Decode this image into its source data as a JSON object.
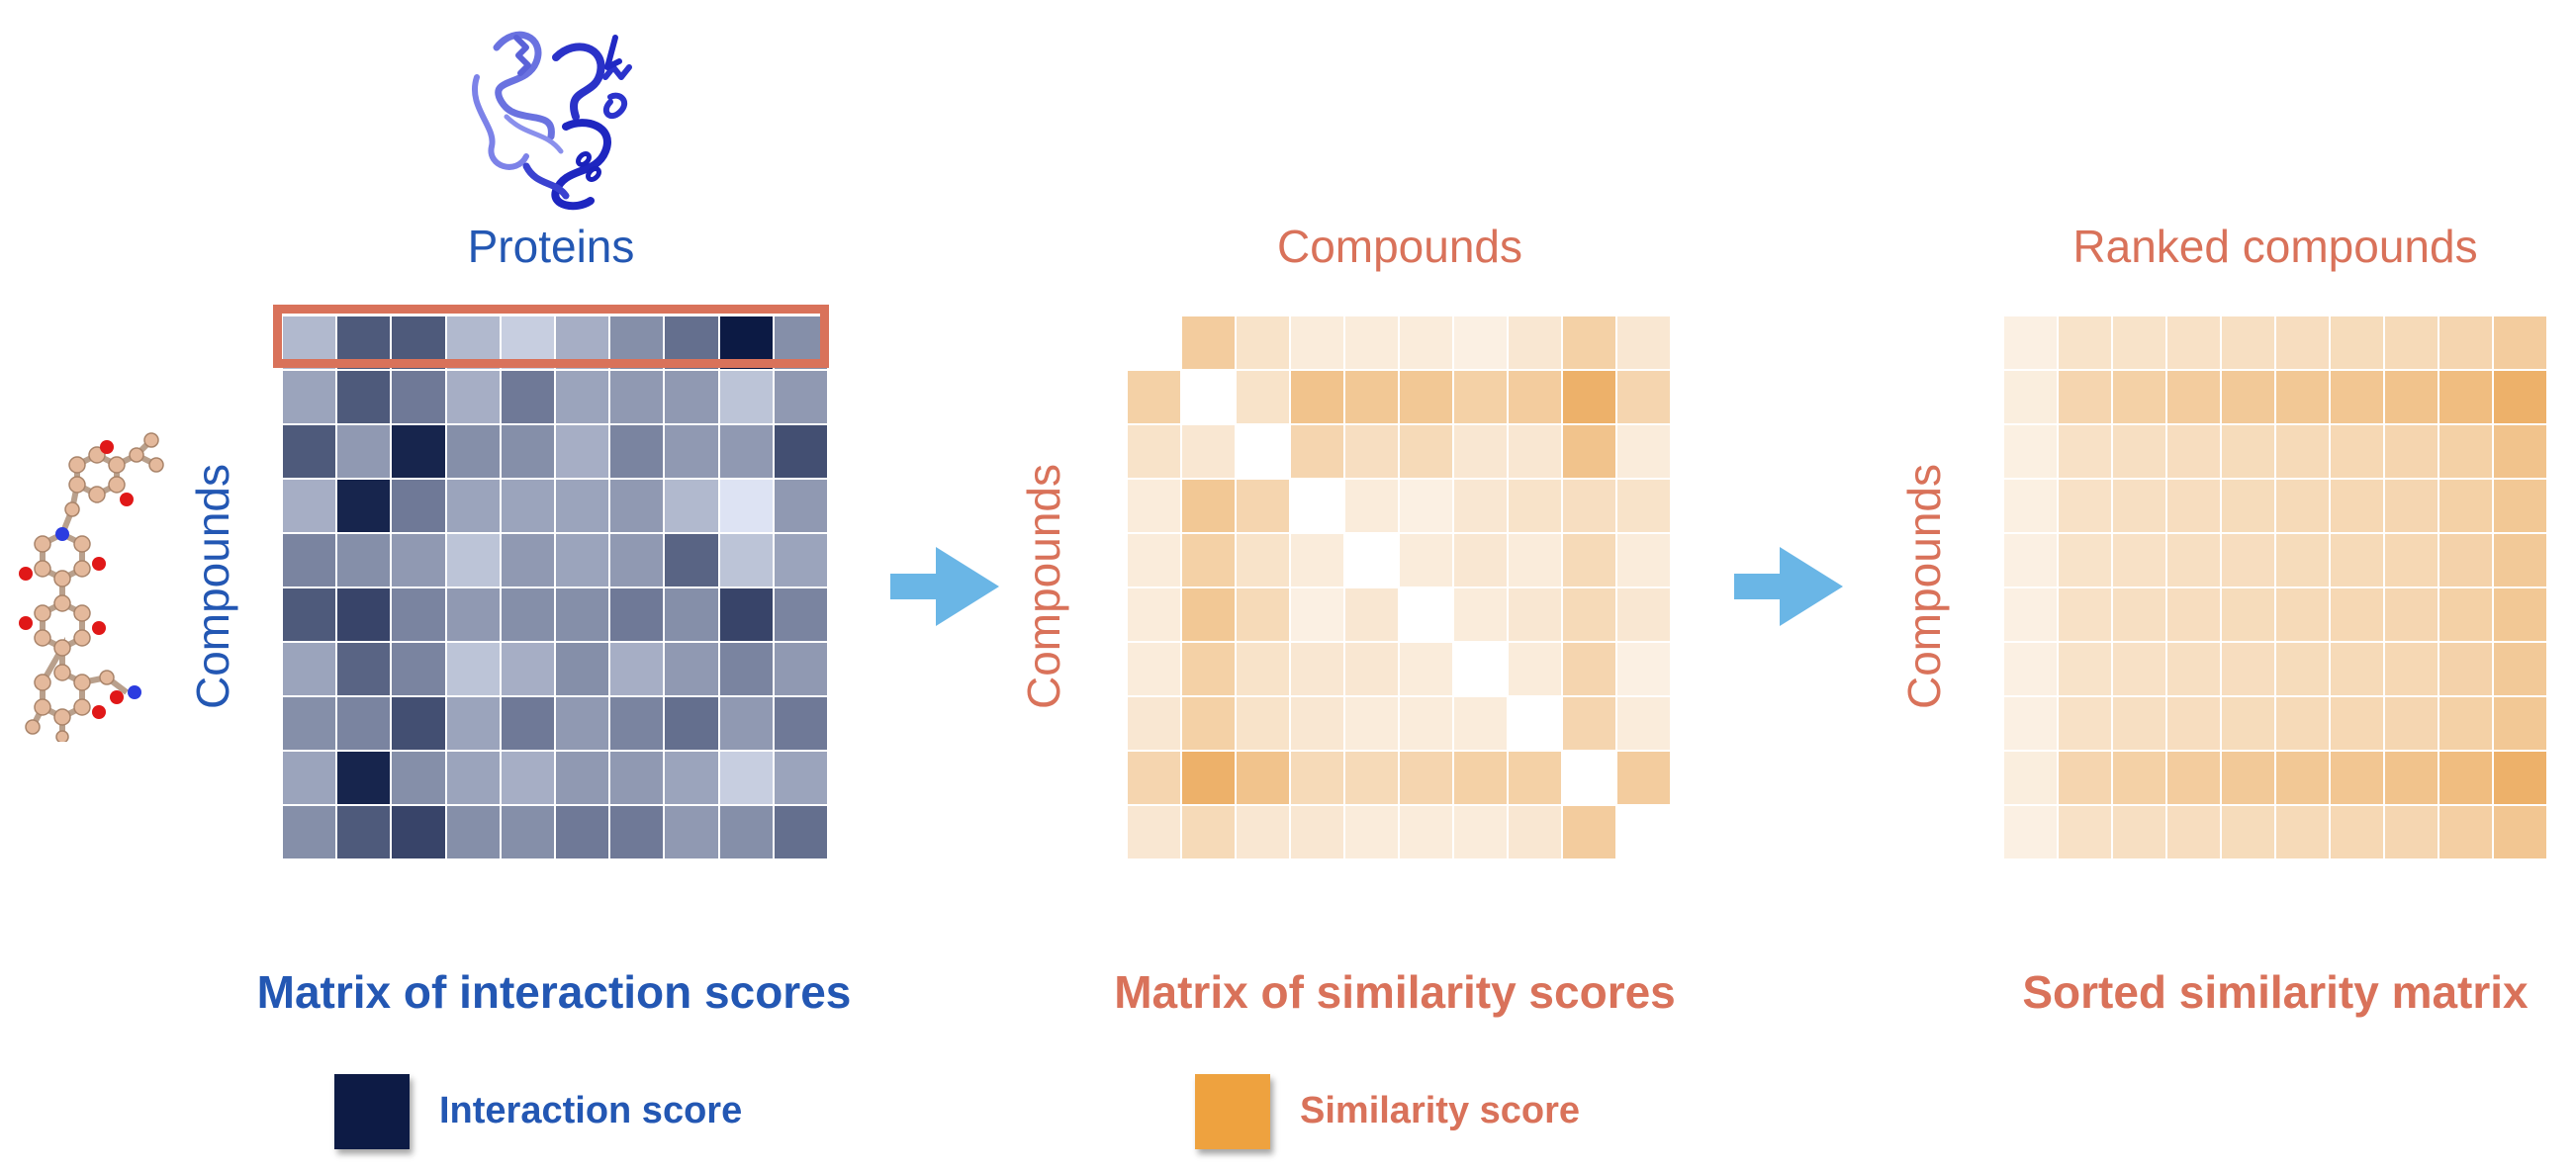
{
  "colors": {
    "blue_text": "#2357b3",
    "orange_text": "#d9725a",
    "arrow": "#6ab6e6",
    "highlight_box": "#d9725a",
    "interaction_swatch": "#0d1b45",
    "similarity_swatch": "#eea23f"
  },
  "panel1": {
    "top_label": "Proteins",
    "side_label": "Compounds",
    "caption": "Matrix of interaction scores",
    "matrix": [
      [
        0.25,
        0.7,
        0.7,
        0.25,
        0.15,
        0.3,
        0.45,
        0.6,
        1.0,
        0.45
      ],
      [
        0.35,
        0.7,
        0.55,
        0.3,
        0.55,
        0.35,
        0.4,
        0.4,
        0.2,
        0.4
      ],
      [
        0.7,
        0.4,
        0.95,
        0.45,
        0.45,
        0.3,
        0.5,
        0.4,
        0.4,
        0.75
      ],
      [
        0.3,
        0.95,
        0.55,
        0.35,
        0.35,
        0.35,
        0.4,
        0.25,
        0.05,
        0.4
      ],
      [
        0.5,
        0.45,
        0.4,
        0.2,
        0.4,
        0.35,
        0.4,
        0.65,
        0.2,
        0.35
      ],
      [
        0.7,
        0.8,
        0.5,
        0.4,
        0.45,
        0.45,
        0.55,
        0.45,
        0.8,
        0.5
      ],
      [
        0.35,
        0.65,
        0.5,
        0.2,
        0.3,
        0.45,
        0.3,
        0.4,
        0.5,
        0.4
      ],
      [
        0.45,
        0.5,
        0.75,
        0.35,
        0.55,
        0.4,
        0.5,
        0.6,
        0.4,
        0.55
      ],
      [
        0.35,
        0.95,
        0.45,
        0.35,
        0.3,
        0.4,
        0.4,
        0.35,
        0.15,
        0.35
      ],
      [
        0.45,
        0.7,
        0.8,
        0.45,
        0.45,
        0.55,
        0.55,
        0.4,
        0.45,
        0.6
      ]
    ]
  },
  "panel2": {
    "top_label": "Compounds",
    "side_label": "Compounds",
    "caption": "Matrix of similarity scores",
    "matrix": [
      [
        0.0,
        0.45,
        0.2,
        0.1,
        0.1,
        0.1,
        0.05,
        0.15,
        0.4,
        0.15
      ],
      [
        0.4,
        0.0,
        0.2,
        0.55,
        0.5,
        0.5,
        0.4,
        0.45,
        0.75,
        0.35
      ],
      [
        0.2,
        0.15,
        0.0,
        0.35,
        0.25,
        0.3,
        0.15,
        0.15,
        0.55,
        0.1
      ],
      [
        0.1,
        0.5,
        0.35,
        0.0,
        0.1,
        0.05,
        0.15,
        0.2,
        0.25,
        0.2
      ],
      [
        0.1,
        0.4,
        0.2,
        0.1,
        0.0,
        0.1,
        0.15,
        0.1,
        0.3,
        0.1
      ],
      [
        0.1,
        0.5,
        0.3,
        0.05,
        0.15,
        0.0,
        0.1,
        0.15,
        0.3,
        0.15
      ],
      [
        0.1,
        0.4,
        0.2,
        0.15,
        0.15,
        0.1,
        0.0,
        0.1,
        0.35,
        0.05
      ],
      [
        0.15,
        0.4,
        0.2,
        0.15,
        0.1,
        0.1,
        0.1,
        0.0,
        0.35,
        0.1
      ],
      [
        0.35,
        0.75,
        0.55,
        0.3,
        0.3,
        0.35,
        0.4,
        0.4,
        0.0,
        0.45
      ],
      [
        0.15,
        0.3,
        0.15,
        0.15,
        0.1,
        0.1,
        0.1,
        0.15,
        0.45,
        0.0
      ]
    ],
    "hidden_cells": [
      [
        0,
        0
      ],
      [
        1,
        1
      ],
      [
        2,
        2
      ],
      [
        3,
        3
      ],
      [
        4,
        4
      ],
      [
        5,
        5
      ],
      [
        6,
        6
      ],
      [
        7,
        7
      ],
      [
        8,
        8
      ],
      [
        9,
        9
      ]
    ]
  },
  "panel3": {
    "top_label": "Ranked compounds",
    "side_label": "Compounds",
    "caption": "Sorted similarity matrix",
    "matrix": [
      [
        0.05,
        0.2,
        0.2,
        0.22,
        0.24,
        0.26,
        0.28,
        0.3,
        0.35,
        0.45
      ],
      [
        0.08,
        0.35,
        0.4,
        0.45,
        0.48,
        0.5,
        0.52,
        0.55,
        0.62,
        0.75
      ],
      [
        0.06,
        0.22,
        0.24,
        0.26,
        0.28,
        0.3,
        0.32,
        0.35,
        0.4,
        0.55
      ],
      [
        0.06,
        0.22,
        0.24,
        0.26,
        0.28,
        0.3,
        0.32,
        0.34,
        0.4,
        0.5
      ],
      [
        0.05,
        0.2,
        0.22,
        0.24,
        0.26,
        0.28,
        0.3,
        0.32,
        0.38,
        0.48
      ],
      [
        0.05,
        0.22,
        0.24,
        0.26,
        0.28,
        0.3,
        0.32,
        0.34,
        0.4,
        0.5
      ],
      [
        0.05,
        0.2,
        0.22,
        0.24,
        0.26,
        0.28,
        0.3,
        0.32,
        0.38,
        0.48
      ],
      [
        0.05,
        0.22,
        0.24,
        0.26,
        0.28,
        0.3,
        0.32,
        0.34,
        0.4,
        0.5
      ],
      [
        0.08,
        0.35,
        0.4,
        0.45,
        0.48,
        0.5,
        0.52,
        0.55,
        0.62,
        0.75
      ],
      [
        0.05,
        0.22,
        0.24,
        0.26,
        0.28,
        0.3,
        0.32,
        0.34,
        0.42,
        0.52
      ]
    ]
  },
  "legend": {
    "interaction_label": "Interaction score",
    "similarity_label": "Similarity score"
  },
  "icons": {
    "protein": "protein-structure-icon",
    "molecule": "molecule-structure-icon",
    "arrow": "arrow-right-icon"
  }
}
